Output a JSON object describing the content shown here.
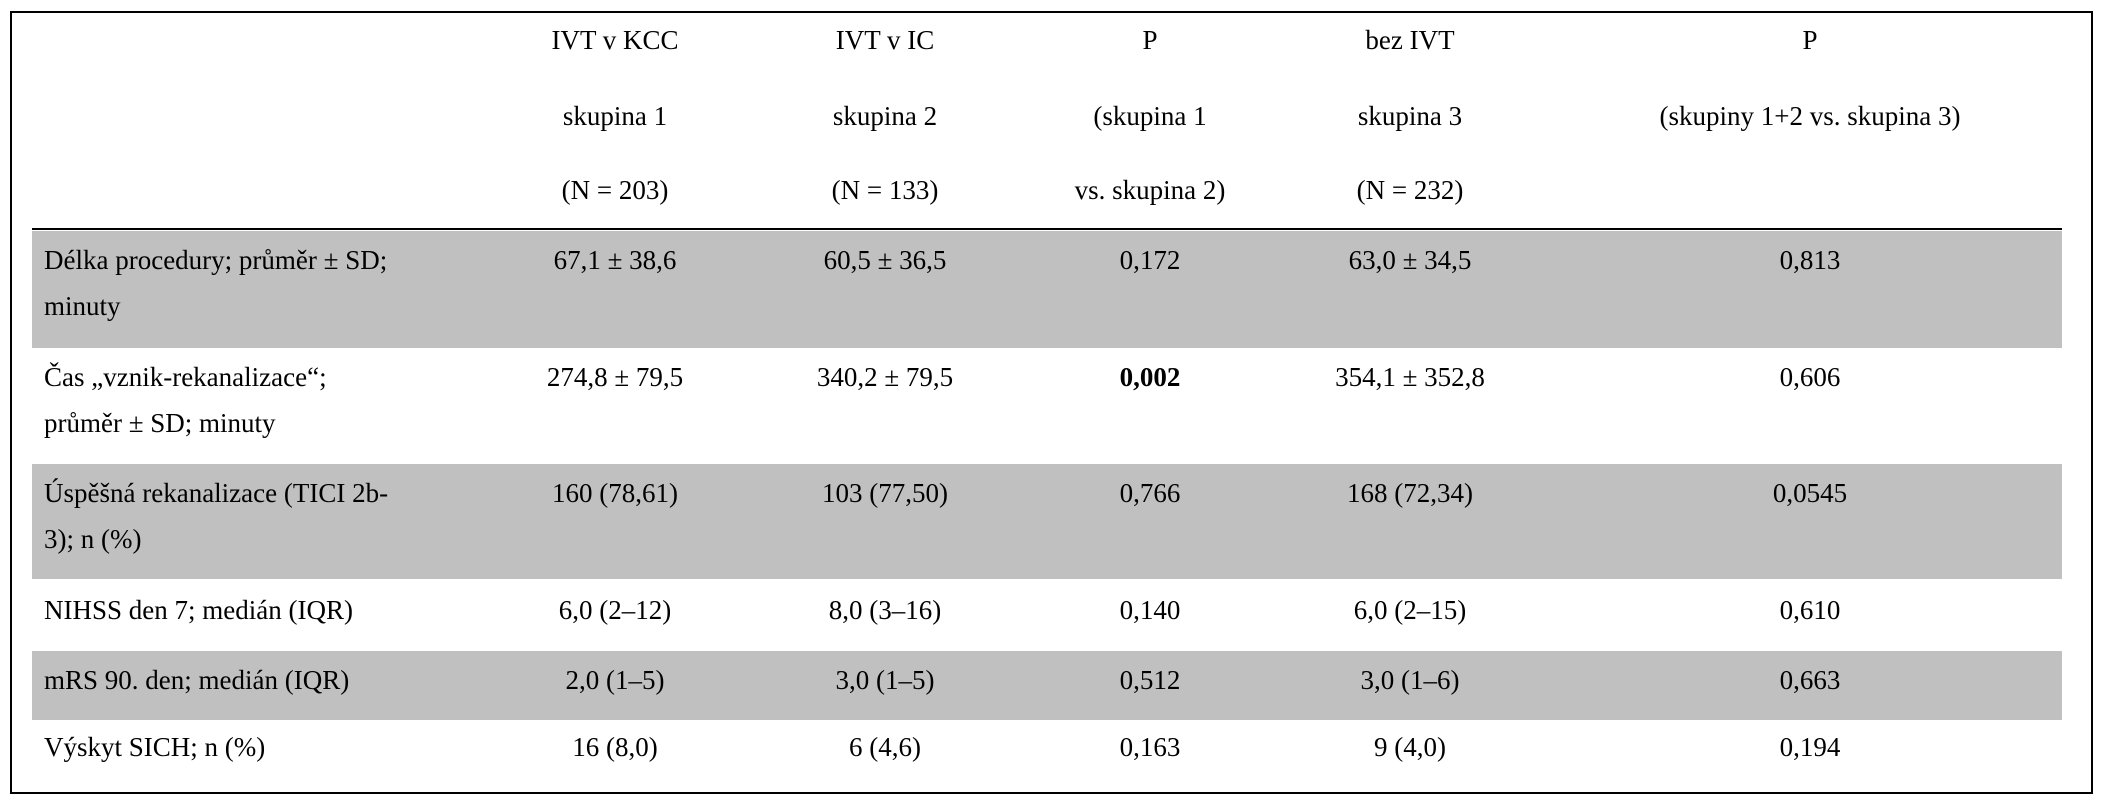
{
  "table": {
    "columns": [
      {
        "lines": [
          "IVT v KCC",
          "skupina 1",
          "(N = 203)"
        ]
      },
      {
        "lines": [
          "IVT v IC",
          "skupina 2",
          "(N = 133)"
        ]
      },
      {
        "lines": [
          "P",
          "(skupina 1",
          "vs. skupina 2)"
        ]
      },
      {
        "lines": [
          "bez IVT",
          "skupina 3",
          "(N = 232)"
        ]
      },
      {
        "lines": [
          "P",
          "(skupiny 1+2 vs. skupina 3)"
        ]
      }
    ],
    "rows": [
      {
        "label": [
          "Délka procedury; průměr ± SD;",
          "minuty"
        ],
        "values": [
          "67,1 ± 38,6",
          "60,5 ± 36,5",
          "0,172",
          "63,0 ± 34,5",
          "0,813"
        ]
      },
      {
        "label": [
          "Čas „vznik-rekanalizace“;",
          "průměr ± SD; minuty"
        ],
        "values": [
          "274,8 ± 79,5",
          "340,2 ± 79,5",
          "0,002",
          "354,1 ± 352,8",
          "0,606"
        ]
      },
      {
        "label": [
          "Úspěšná rekanalizace (TICI 2b-",
          "3); n (%)"
        ],
        "values": [
          "160 (78,61)",
          "103 (77,50)",
          "0,766",
          "168 (72,34)",
          "0,0545"
        ]
      },
      {
        "label": [
          "NIHSS den 7; medián (IQR)"
        ],
        "values": [
          "6,0 (2–12)",
          "8,0 (3–16)",
          "0,140",
          "6,0 (2–15)",
          "0,610"
        ]
      },
      {
        "label": [
          "mRS 90. den; medián (IQR)"
        ],
        "values": [
          "2,0 (1–5)",
          "3,0 (1–5)",
          "0,512",
          "3,0 (1–6)",
          "0,663"
        ]
      },
      {
        "label": [
          "Výskyt SICH; n (%)"
        ],
        "values": [
          "16 (8,0)",
          "6 (4,6)",
          "0,163",
          "9 (4,0)",
          "0,194"
        ]
      }
    ]
  }
}
